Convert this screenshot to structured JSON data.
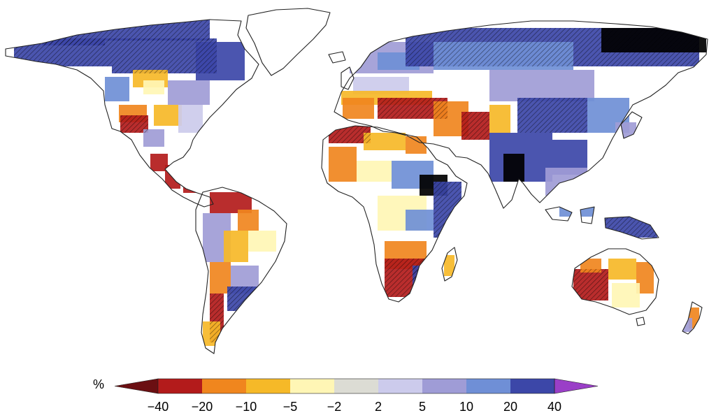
{
  "chart_data": {
    "type": "choropleth-map",
    "title": "",
    "colorbar": {
      "unit_label": "%",
      "ticks": [
        "−40",
        "−20",
        "−10",
        "−5",
        "−2",
        "2",
        "5",
        "10",
        "20",
        "40"
      ],
      "colors": [
        "#b31b1b",
        "#f0861e",
        "#f6b928",
        "#fff6b5",
        "#dcdcd4",
        "#cccbec",
        "#9f9cd6",
        "#6f8fd6",
        "#3c47a8"
      ],
      "under_color": "#6b0f12",
      "over_color": "#9a3fc7"
    },
    "regions": [
      {
        "name": "Alaska / Northern Canada",
        "value": 30,
        "hatched": true
      },
      {
        "name": "Greenland",
        "value": null,
        "hatched": false
      },
      {
        "name": "Southwestern USA / Mexico",
        "value": -25,
        "hatched": true
      },
      {
        "name": "Central America",
        "value": -20,
        "hatched": false
      },
      {
        "name": "Eastern USA",
        "value": 5,
        "hatched": false
      },
      {
        "name": "Northern South America",
        "value": -10,
        "hatched": false
      },
      {
        "name": "Southeastern South America",
        "value": 20,
        "hatched": true
      },
      {
        "name": "Southern Chile",
        "value": -25,
        "hatched": true
      },
      {
        "name": "Northern Europe / Scandinavia",
        "value": 15,
        "hatched": false
      },
      {
        "name": "Mediterranean",
        "value": -25,
        "hatched": true
      },
      {
        "name": "North Africa / Sahel",
        "value": -15,
        "hatched": false
      },
      {
        "name": "Northern Asia / Siberia",
        "value": 25,
        "hatched": true
      },
      {
        "name": "East Asia / China",
        "value": 20,
        "hatched": true
      },
      {
        "name": "South Asia / India",
        "value": 20,
        "hatched": false
      },
      {
        "name": "East Africa",
        "value": 25,
        "hatched": true
      },
      {
        "name": "Southern Africa",
        "value": -25,
        "hatched": true
      },
      {
        "name": "Maritime Southeast Asia",
        "value": 15,
        "hatched": true
      },
      {
        "name": "Western Australia",
        "value": -20,
        "hatched": true
      },
      {
        "name": "Eastern Australia",
        "value": -5,
        "hatched": false
      }
    ]
  }
}
